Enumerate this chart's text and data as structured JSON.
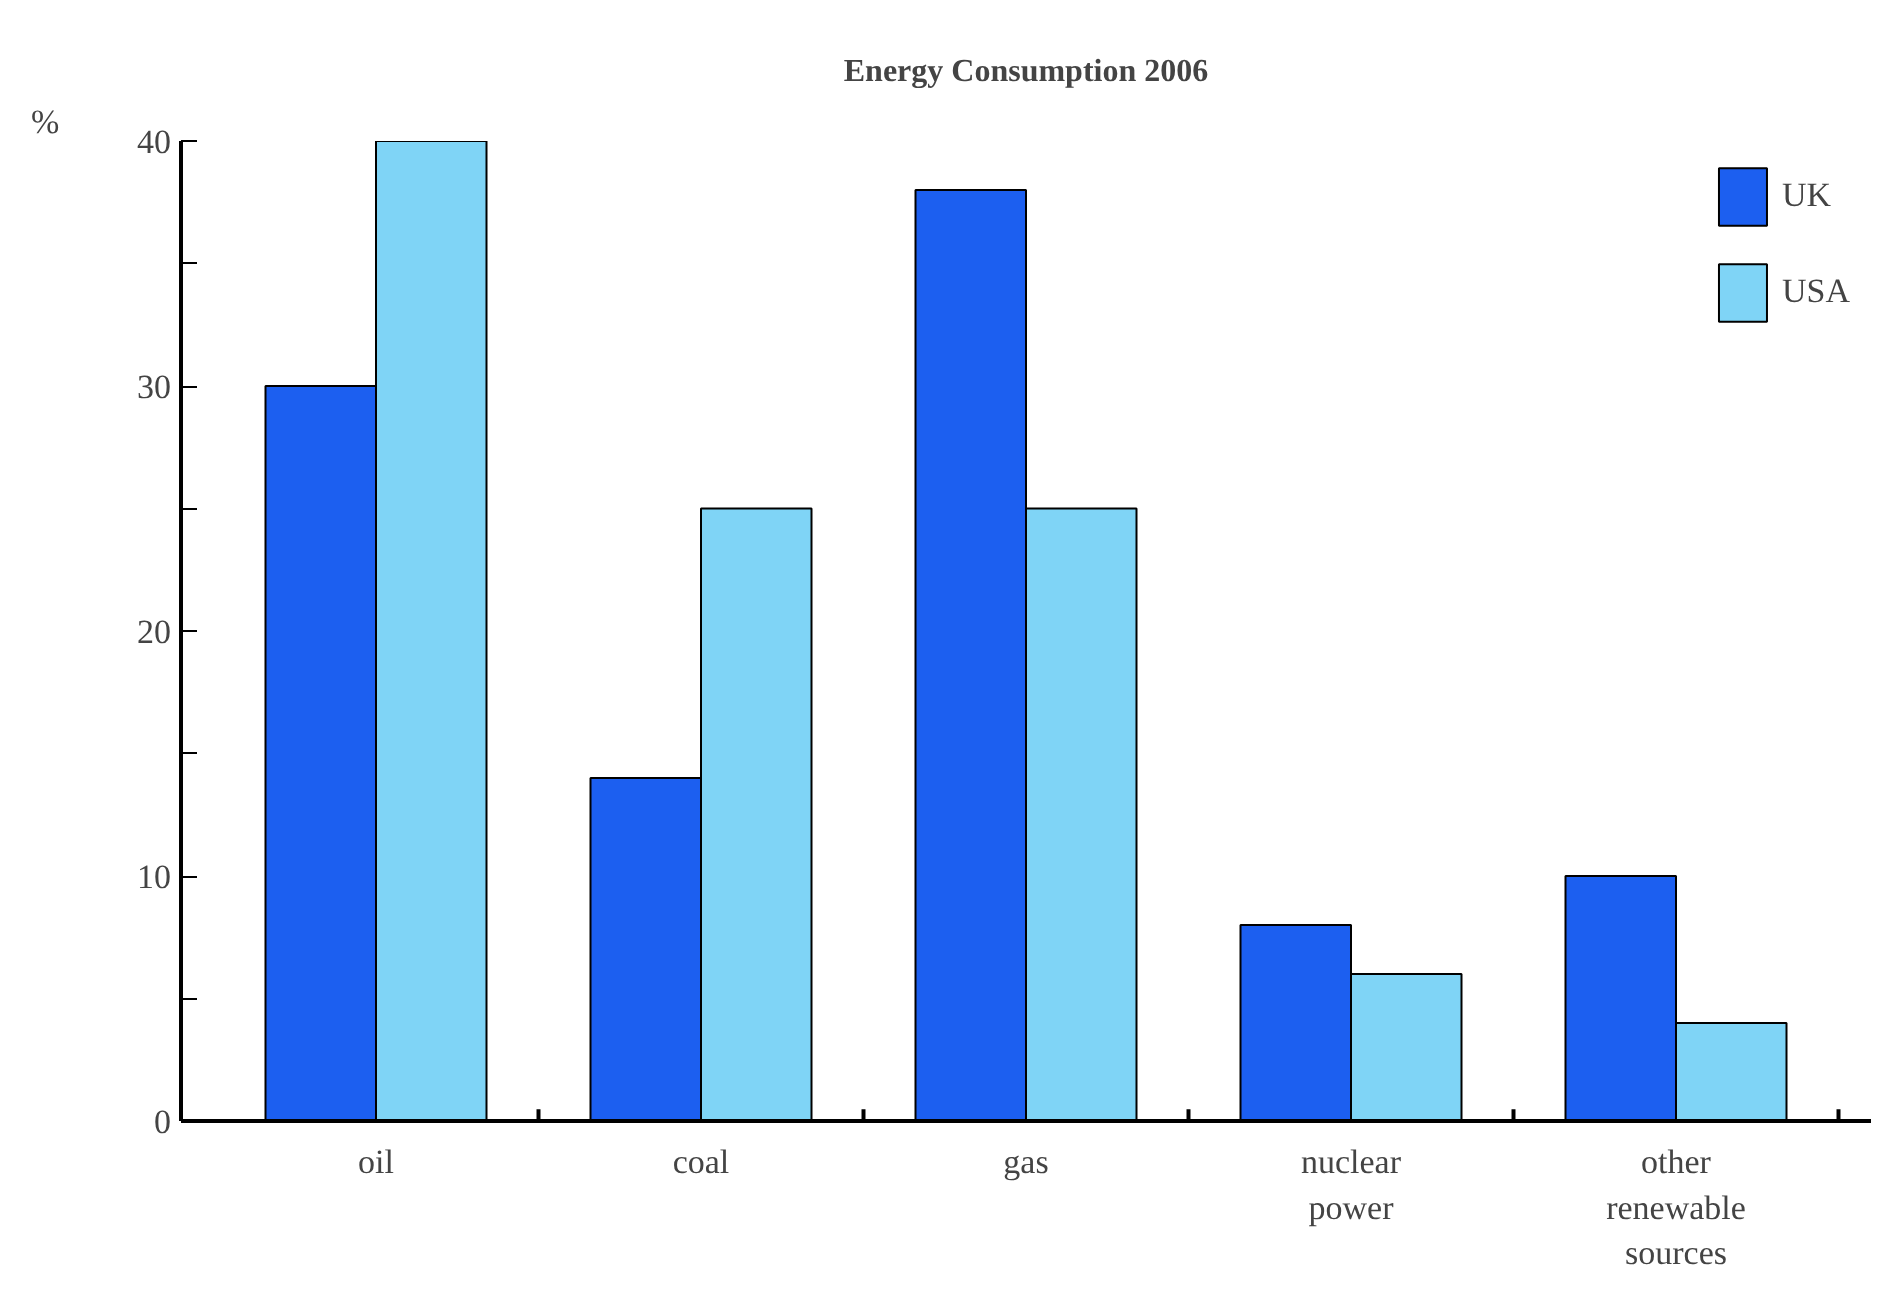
{
  "chart_data": {
    "type": "bar",
    "title": "Energy Consumption 2006",
    "ylabel": "%",
    "categories": [
      "oil",
      "coal",
      "gas",
      "nuclear power",
      "other renewable sources"
    ],
    "series": [
      {
        "name": "UK",
        "color": "#1c5ff0",
        "values": [
          30,
          14,
          38,
          8,
          10
        ]
      },
      {
        "name": "USA",
        "color": "#7fd4f6",
        "values": [
          40,
          25,
          25,
          6,
          4
        ]
      }
    ],
    "ylim": [
      0,
      40
    ],
    "yticks": [
      0,
      {
        "value": 5,
        "label": null
      },
      10,
      {
        "value": 15,
        "label": null
      },
      20,
      {
        "value": 25,
        "label": null
      },
      30,
      {
        "value": 35,
        "label": null
      },
      40
    ],
    "grid": false,
    "legend": "top right"
  }
}
